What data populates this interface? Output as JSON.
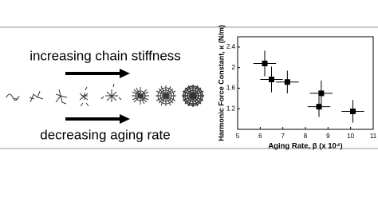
{
  "diagram": {
    "top_label": "increasing chain stiffness",
    "bottom_label": "decreasing aging rate"
  },
  "chart_data": {
    "type": "scatter",
    "x_label": "Aging Rate, β (x 10⁴)",
    "y_label": "Harmonic Force Constant, κ (N/m)",
    "x": [
      6.2,
      6.5,
      7.2,
      8.6,
      8.7,
      10.1
    ],
    "values": [
      2.08,
      1.77,
      1.72,
      1.24,
      1.5,
      1.15
    ],
    "xerr": [
      0.5,
      0.5,
      0.5,
      0.5,
      0.5,
      0.5
    ],
    "yerr": [
      0.25,
      0.25,
      0.22,
      0.2,
      0.25,
      0.22
    ],
    "color": "#000000",
    "xlim": [
      5,
      11
    ],
    "xticks": [
      5,
      6,
      7,
      8,
      9,
      10,
      11
    ],
    "ylim": [
      0.8,
      2.6
    ],
    "yticks": [
      1.2,
      1.6,
      2.0,
      2.4
    ]
  }
}
